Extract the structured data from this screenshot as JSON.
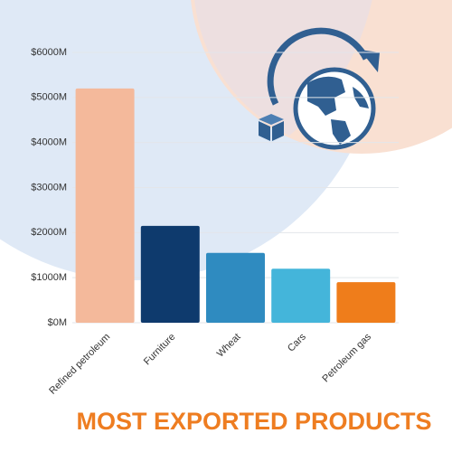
{
  "chart_data": {
    "type": "bar",
    "title": "MOST EXPORTED PRODUCTS",
    "categories": [
      "Refined petroleum",
      "Furniture",
      "Wheat",
      "Cars",
      "Petroleum gas"
    ],
    "values": [
      5200,
      2150,
      1550,
      1200,
      900
    ],
    "colors": [
      "#f4b99b",
      "#0e3a6d",
      "#2f8bc0",
      "#44b5da",
      "#ef7d1b"
    ],
    "ylim": [
      0,
      6000
    ],
    "yticks": [
      {
        "value": 0,
        "label": "$0M"
      },
      {
        "value": 1000,
        "label": "$1000M"
      },
      {
        "value": 2000,
        "label": "$2000M"
      },
      {
        "value": 3000,
        "label": "$3000M"
      },
      {
        "value": 4000,
        "label": "$4000M"
      },
      {
        "value": 5000,
        "label": "$5000M"
      },
      {
        "value": 6000,
        "label": "$6000M"
      }
    ],
    "grid": true
  }
}
